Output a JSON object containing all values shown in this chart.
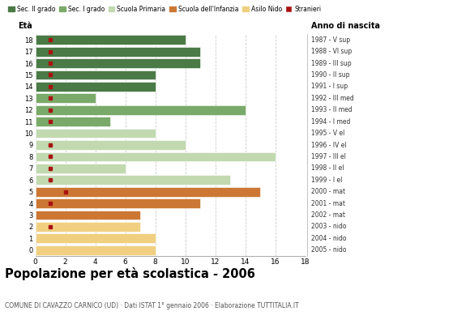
{
  "ages": [
    18,
    17,
    16,
    15,
    14,
    13,
    12,
    11,
    10,
    9,
    8,
    7,
    6,
    5,
    4,
    3,
    2,
    1,
    0
  ],
  "right_labels": [
    "1987 - V sup",
    "1988 - VI sup",
    "1989 - III sup",
    "1990 - II sup",
    "1991 - I sup",
    "1992 - III med",
    "1993 - II med",
    "1994 - I med",
    "1995 - V el",
    "1996 - IV el",
    "1997 - III el",
    "1998 - II el",
    "1999 - I el",
    "2000 - mat",
    "2001 - mat",
    "2002 - mat",
    "2003 - nido",
    "2004 - nido",
    "2005 - nido"
  ],
  "bar_values": [
    10,
    11,
    11,
    8,
    8,
    4,
    14,
    5,
    8,
    10,
    16,
    6,
    13,
    15,
    11,
    7,
    7,
    8,
    8
  ],
  "bar_colors": [
    "#4a7a45",
    "#4a7a45",
    "#4a7a45",
    "#4a7a45",
    "#4a7a45",
    "#7aaa6a",
    "#7aaa6a",
    "#7aaa6a",
    "#c2d9b0",
    "#c2d9b0",
    "#c2d9b0",
    "#c2d9b0",
    "#c2d9b0",
    "#cc7733",
    "#cc7733",
    "#cc7733",
    "#f0d080",
    "#f0d080",
    "#f0d080"
  ],
  "stranieri_positions": [
    18,
    17,
    16,
    15,
    14,
    13,
    12,
    11,
    9,
    8,
    7,
    6,
    5,
    4,
    2
  ],
  "stranieri_values": [
    1,
    1,
    1,
    1,
    1,
    1,
    1,
    1,
    1,
    1,
    1,
    1,
    2,
    1,
    1
  ],
  "legend_labels": [
    "Sec. II grado",
    "Sec. I grado",
    "Scuola Primaria",
    "Scuola dell'Infanzia",
    "Asilo Nido",
    "Stranieri"
  ],
  "legend_colors": [
    "#4a7a45",
    "#7aaa6a",
    "#c2d9b0",
    "#cc7733",
    "#f0d080",
    "#aa1111"
  ],
  "title": "Popolazione per età scolastica - 2006",
  "subtitle": "COMUNE DI CAVAZZO CARNICO (UD) · Dati ISTAT 1° gennaio 2006 · Elaborazione TUTTITALIA.IT",
  "xlabel_left": "Età",
  "xlabel_right": "Anno di nascita",
  "xlim": [
    0,
    18
  ],
  "xticks": [
    0,
    2,
    4,
    6,
    8,
    10,
    12,
    14,
    16,
    18
  ],
  "background_color": "#ffffff",
  "grid_color": "#cccccc"
}
